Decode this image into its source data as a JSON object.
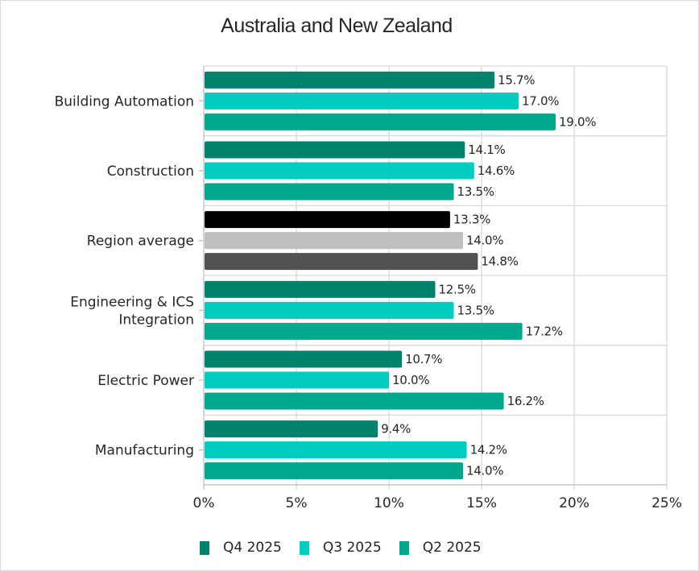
{
  "chart_data": {
    "type": "bar",
    "orientation": "horizontal",
    "title": "Australia and New Zealand",
    "xlabel": "",
    "ylabel": "",
    "xlim": [
      0,
      25
    ],
    "x_ticks": [
      0,
      5,
      10,
      15,
      20,
      25
    ],
    "x_tick_labels": [
      "0%",
      "5%",
      "10%",
      "15%",
      "20%",
      "25%"
    ],
    "grid": true,
    "legend_position": "bottom",
    "categories": [
      "Building Automation",
      "Construction",
      "Region average",
      "Engineering & ICS Integration",
      "Electric Power",
      "Manufacturing"
    ],
    "category_label_lines": [
      [
        "Building Automation"
      ],
      [
        "Construction"
      ],
      [
        "Region average"
      ],
      [
        "Engineering & ICS",
        "Integration"
      ],
      [
        "Electric Power"
      ],
      [
        "Manufacturing"
      ]
    ],
    "series": [
      {
        "name": "Q4 2025",
        "color": "#00826C",
        "values": [
          15.7,
          14.1,
          13.3,
          12.5,
          10.7,
          9.4
        ]
      },
      {
        "name": "Q3 2025",
        "color": "#00CCC0",
        "values": [
          17.0,
          14.6,
          14.0,
          13.5,
          10.0,
          14.2
        ]
      },
      {
        "name": "Q2 2025",
        "color": "#00A88E",
        "values": [
          19.0,
          13.5,
          14.8,
          17.2,
          16.2,
          14.0
        ]
      }
    ],
    "data_labels": [
      [
        "15.7%",
        "17.0%",
        "19.0%"
      ],
      [
        "14.1%",
        "14.6%",
        "13.5%"
      ],
      [
        "13.3%",
        "14.0%",
        "14.8%"
      ],
      [
        "12.5%",
        "13.5%",
        "17.2%"
      ],
      [
        "10.7%",
        "10.0%",
        "16.2%"
      ],
      [
        "9.4%",
        "14.2%",
        "14.0%"
      ]
    ],
    "highlight_category": "Region average",
    "highlight_colors": [
      "#000000",
      "#BFBFBF",
      "#525252"
    ]
  },
  "legend": {
    "items": [
      {
        "label": "Q4 2025",
        "color": "#00826C"
      },
      {
        "label": "Q3 2025",
        "color": "#00CCC0"
      },
      {
        "label": "Q2 2025",
        "color": "#00A88E"
      }
    ]
  }
}
